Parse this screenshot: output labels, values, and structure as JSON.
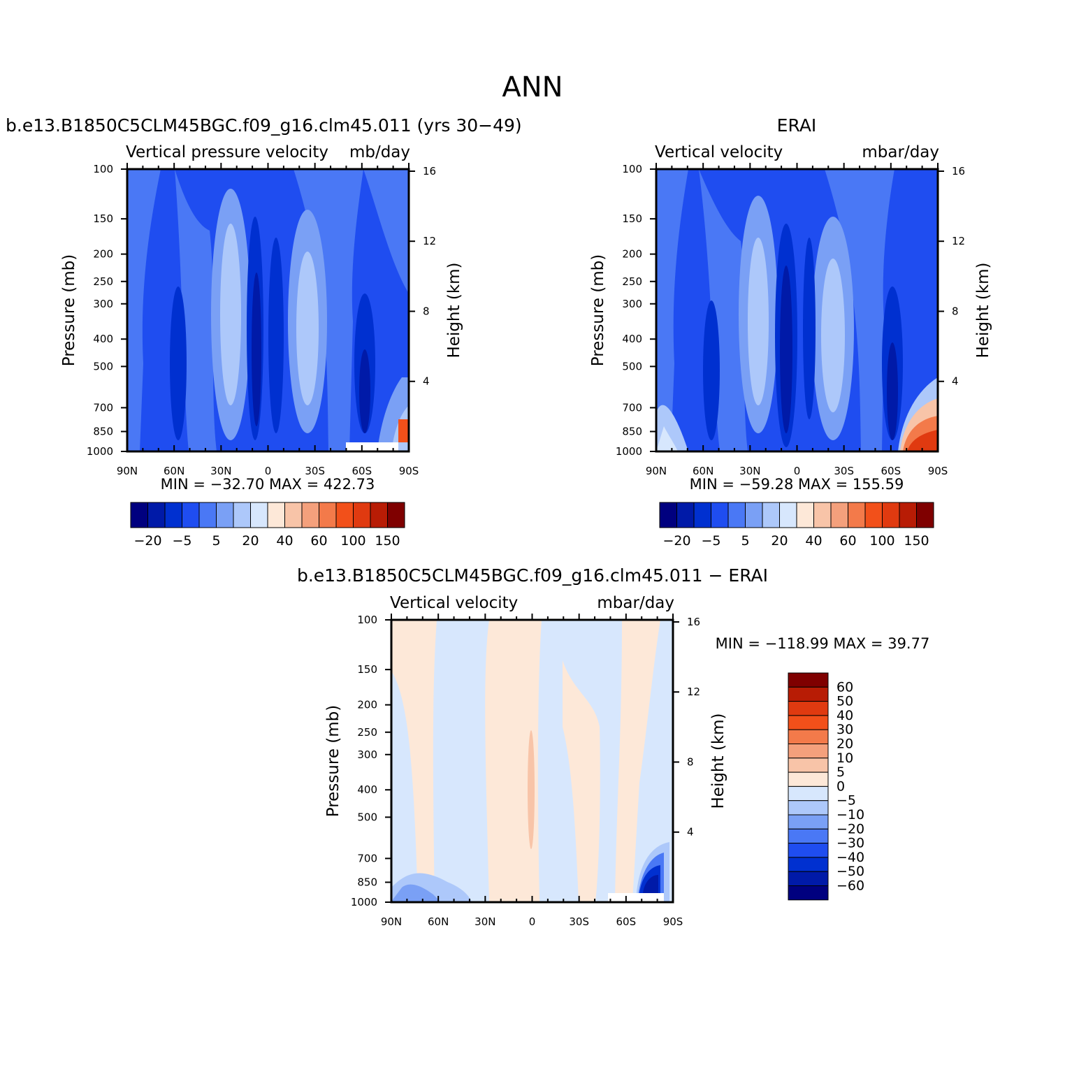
{
  "page": {
    "title": "ANN"
  },
  "colors": {
    "blues": [
      "#00007f",
      "#001aa8",
      "#0030d0",
      "#1f4df0",
      "#4a78f5",
      "#7aa0f5",
      "#adc8fa",
      "#d7e7fd"
    ],
    "oranges": [
      "#fde8d8",
      "#f8c4a8",
      "#f4a07c",
      "#f37a4a",
      "#f2501a",
      "#e03a10",
      "#b81c05",
      "#7f0000"
    ]
  },
  "chart_data": [
    {
      "type": "heatmap",
      "title": "b.e13.B1850C5CLM45BGC.f09_g16.clm45.011 (yrs 30−49)",
      "left_label": "Vertical pressure velocity",
      "right_label": "mb/day",
      "ylabel": "Pressure (mb)",
      "ylabel2": "Height (km)",
      "xticks": [
        "90N",
        "60N",
        "30N",
        "0",
        "30S",
        "60S",
        "90S"
      ],
      "yticks": [
        "100",
        "150",
        "200",
        "250",
        "300",
        "400",
        "500",
        "700",
        "850",
        "1000"
      ],
      "ylim": [
        1000,
        100
      ],
      "yticks2": [
        "16",
        "12",
        "8",
        "4"
      ],
      "stats": "MIN = −32.70   MAX = 422.73",
      "min": -32.7,
      "max": 422.73,
      "colorbar_labels": [
        "−20",
        "−5",
        "5",
        "20",
        "40",
        "60",
        "100",
        "150"
      ]
    },
    {
      "type": "heatmap",
      "title": "ERAI",
      "left_label": "Vertical velocity",
      "right_label": "mbar/day",
      "ylabel": "Pressure (mb)",
      "ylabel2": "Height (km)",
      "xticks": [
        "90N",
        "60N",
        "30N",
        "0",
        "30S",
        "60S",
        "90S"
      ],
      "yticks": [
        "100",
        "150",
        "200",
        "250",
        "300",
        "400",
        "500",
        "700",
        "850",
        "1000"
      ],
      "ylim": [
        1000,
        100
      ],
      "yticks2": [
        "16",
        "12",
        "8",
        "4"
      ],
      "stats": "MIN = −59.28   MAX = 155.59",
      "min": -59.28,
      "max": 155.59,
      "colorbar_labels": [
        "−20",
        "−5",
        "5",
        "20",
        "40",
        "60",
        "100",
        "150"
      ]
    },
    {
      "type": "heatmap",
      "title": "b.e13.B1850C5CLM45BGC.f09_g16.clm45.011 − ERAI",
      "left_label": "Vertical velocity",
      "right_label": "mbar/day",
      "ylabel": "Pressure (mb)",
      "ylabel2": "Height (km)",
      "xticks": [
        "90N",
        "60N",
        "30N",
        "0",
        "30S",
        "60S",
        "90S"
      ],
      "yticks": [
        "100",
        "150",
        "200",
        "250",
        "300",
        "400",
        "500",
        "700",
        "850",
        "1000"
      ],
      "ylim": [
        1000,
        100
      ],
      "yticks2": [
        "16",
        "12",
        "8",
        "4"
      ],
      "stats": "MIN = −118.99   MAX =   39.77",
      "min": -118.99,
      "max": 39.77,
      "colorbar_labels": [
        "60",
        "50",
        "40",
        "30",
        "20",
        "10",
        "5",
        "0",
        "−5",
        "−10",
        "−20",
        "−30",
        "−40",
        "−50",
        "−60"
      ]
    }
  ]
}
